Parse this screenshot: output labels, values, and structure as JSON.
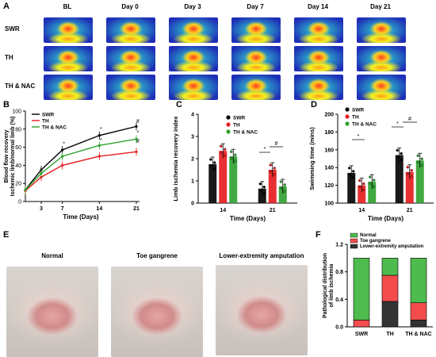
{
  "panel_labels": {
    "a": "A",
    "b": "B",
    "c": "C",
    "d": "D",
    "e": "E",
    "f": "F"
  },
  "panel_a": {
    "columns": [
      "BL",
      "Day 0",
      "Day 3",
      "Day 7",
      "Day 14",
      "Day 21"
    ],
    "rows": [
      "SWR",
      "TH",
      "TH & NAC"
    ]
  },
  "panel_e": {
    "titles": [
      "Normal",
      "Toe gangrene",
      "Lower-extremity amputation"
    ]
  },
  "colors": {
    "swr": "#000000",
    "th": "#e41a1c",
    "nac": "#2ca02c",
    "bar_normal": "#4dbb4d",
    "bar_toe": "#f24c4c",
    "bar_amp": "#333333"
  },
  "chart_data": [
    {
      "panel": "B",
      "type": "line",
      "ylabel": "Blood flow recovery Ischemic limb/normal limb (%)",
      "xlabel": "Time (Days)",
      "x": [
        0,
        3,
        7,
        14,
        21
      ],
      "xticks": [
        "3",
        "7",
        "14",
        "21"
      ],
      "yticks": [
        "0",
        "20",
        "40",
        "60",
        "80",
        "100"
      ],
      "ylim": [
        0,
        100
      ],
      "series": [
        {
          "name": "SWR",
          "values": [
            13,
            35,
            57,
            73,
            83
          ]
        },
        {
          "name": "TH",
          "values": [
            12,
            27,
            40,
            50,
            55
          ]
        },
        {
          "name": "TH & NAC",
          "values": [
            13,
            31,
            50,
            62,
            69
          ]
        }
      ],
      "annotations": [
        "*",
        "*",
        "*",
        "#",
        "*",
        "#"
      ],
      "legend": "top-left"
    },
    {
      "panel": "C",
      "type": "bar",
      "ylabel": "Limb ischemia recovery index",
      "xlabel": "Time (Days)",
      "categories": [
        "14",
        "21"
      ],
      "yticks": [
        "0",
        "1",
        "2",
        "3",
        "4"
      ],
      "ylim": [
        0,
        4
      ],
      "series": [
        {
          "name": "SWR",
          "values": [
            1.75,
            0.65
          ]
        },
        {
          "name": "TH",
          "values": [
            2.35,
            1.5
          ]
        },
        {
          "name": "TH & NAC",
          "values": [
            2.1,
            0.75
          ]
        }
      ],
      "annotations": [
        "*",
        "#"
      ],
      "legend": "top-right"
    },
    {
      "panel": "D",
      "type": "bar",
      "ylabel": "Swimming time (mins)",
      "xlabel": "Time (Days)",
      "categories": [
        "14",
        "21"
      ],
      "yticks": [
        "100",
        "120",
        "140",
        "160",
        "180",
        "200"
      ],
      "ylim": [
        100,
        200
      ],
      "series": [
        {
          "name": "SWR",
          "values": [
            134,
            154
          ]
        },
        {
          "name": "TH",
          "values": [
            120,
            135
          ]
        },
        {
          "name": "TH & NAC",
          "values": [
            124,
            148
          ]
        }
      ],
      "annotations": [
        "*",
        "*",
        "#"
      ],
      "legend": "top-left"
    },
    {
      "panel": "F",
      "type": "bar",
      "ylabel": "Pathological distribution of limb ischemia",
      "categories": [
        "SWR",
        "TH",
        "TH & NAC"
      ],
      "yticks": [
        "0.0",
        "0.4",
        "0.8",
        "1.2"
      ],
      "ylim": [
        0,
        1.2
      ],
      "series": [
        {
          "name": "Normal",
          "values": [
            0.9,
            0.25,
            0.65
          ]
        },
        {
          "name": "Toe gangrene",
          "values": [
            0.1,
            0.38,
            0.25
          ]
        },
        {
          "name": "Lower-extremity amputation",
          "values": [
            0.0,
            0.37,
            0.1
          ]
        }
      ],
      "legend": "top"
    }
  ]
}
